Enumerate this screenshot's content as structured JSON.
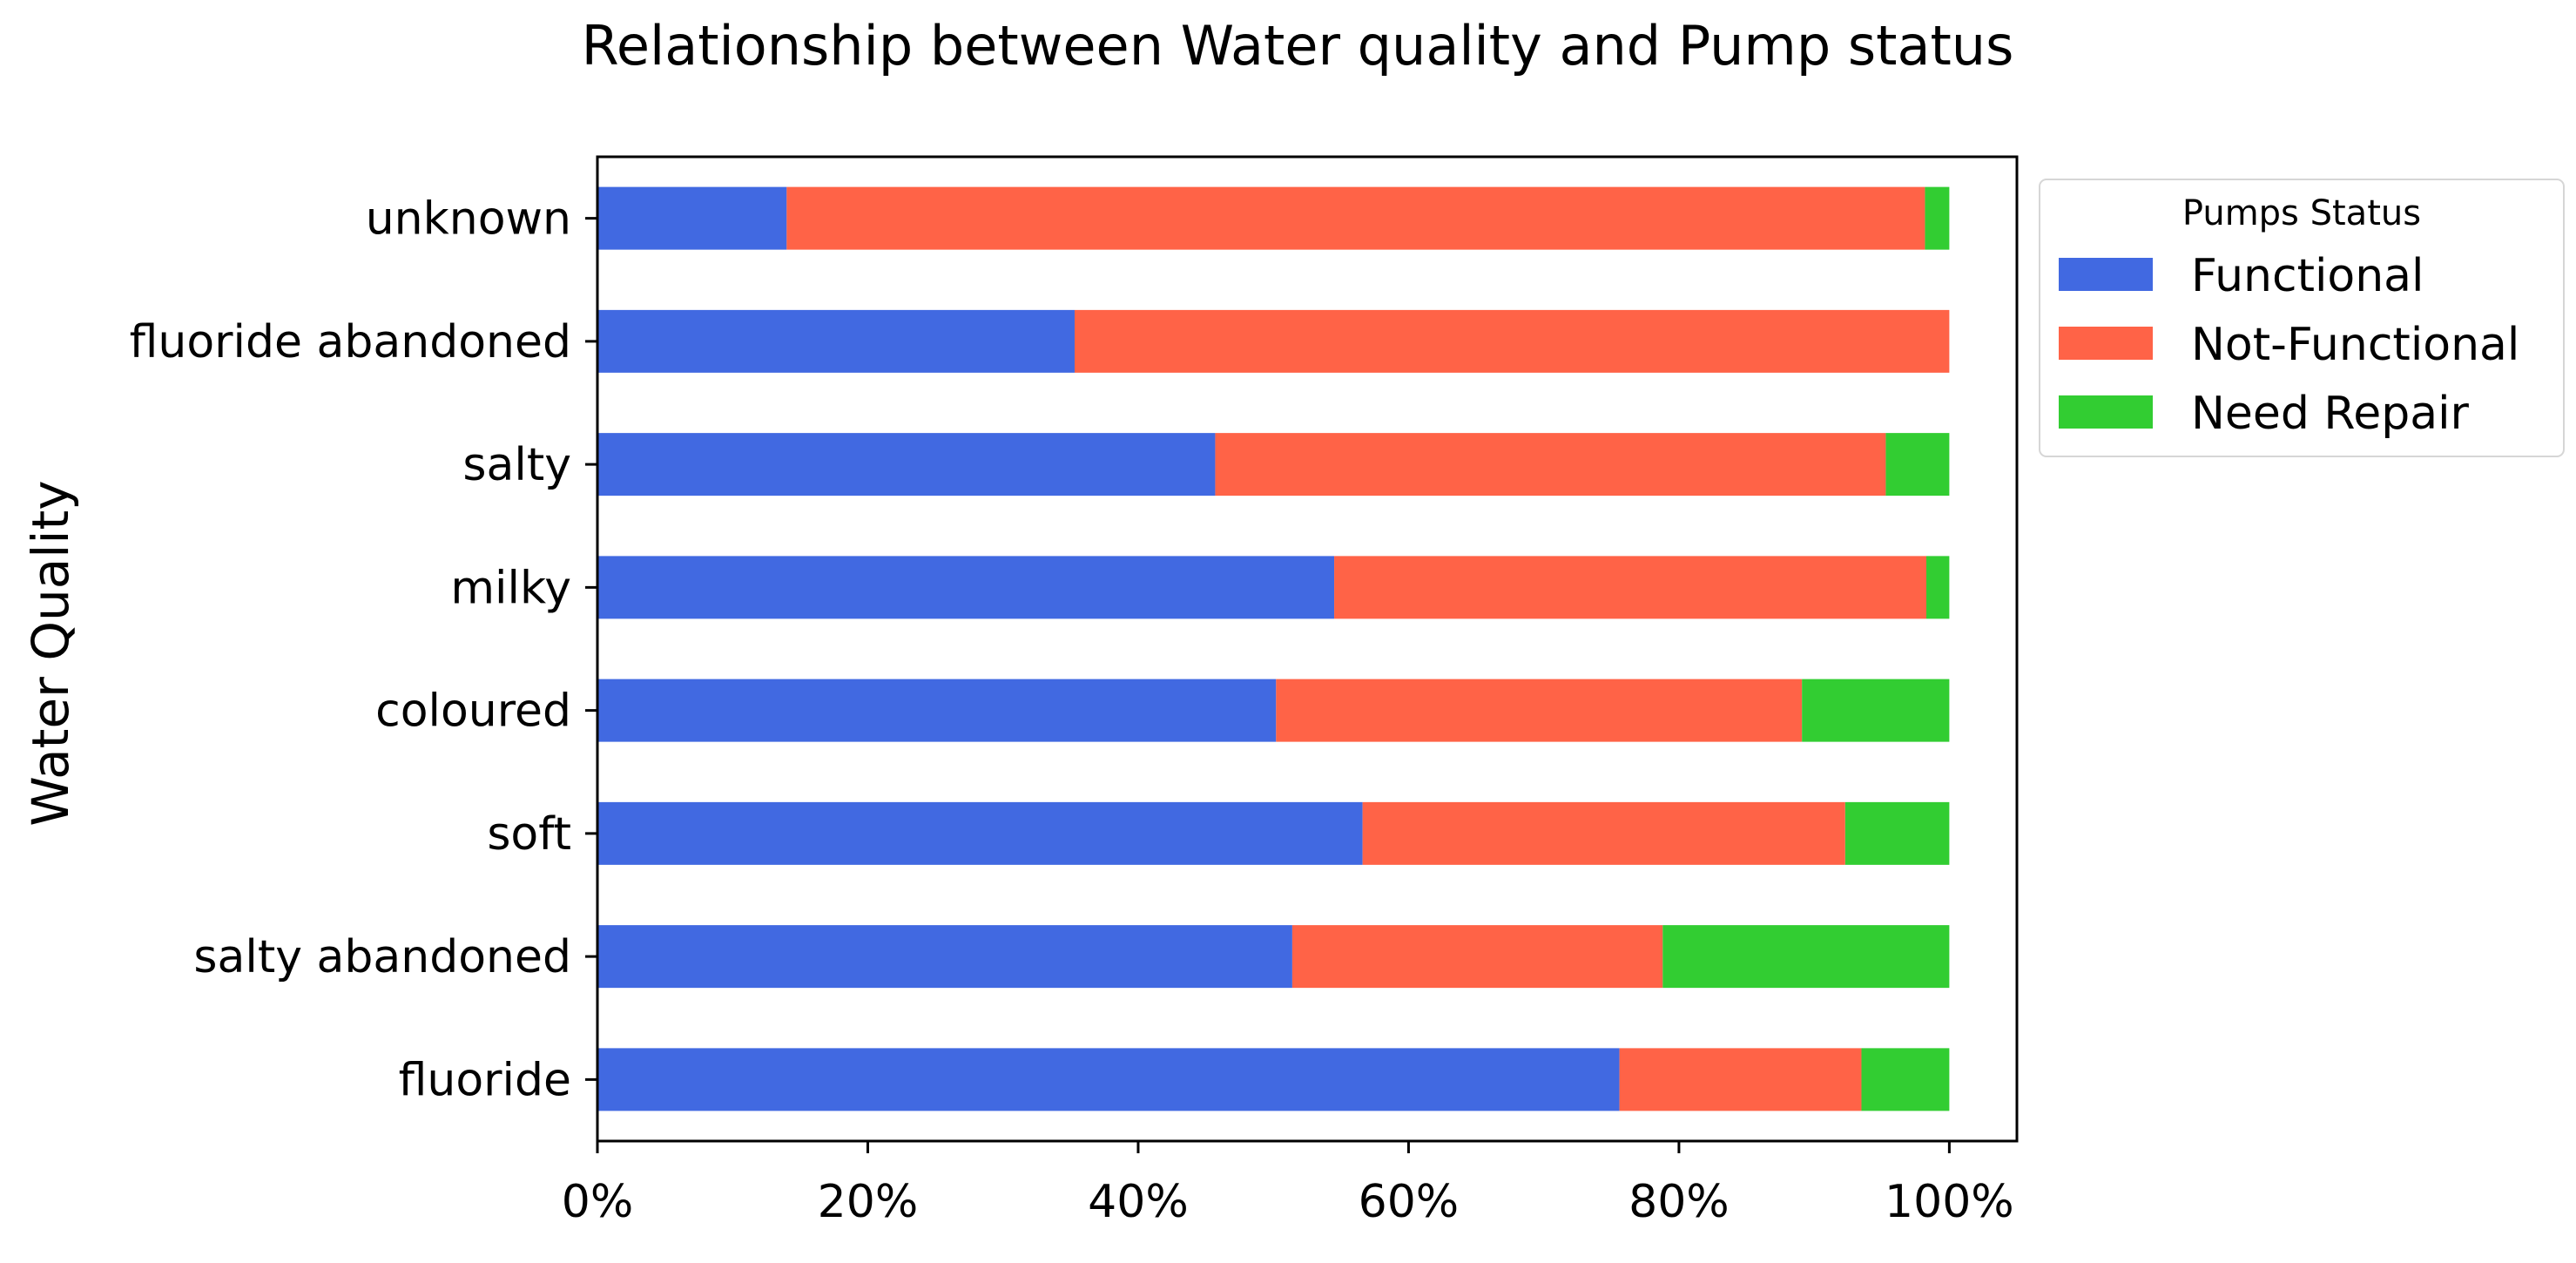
{
  "chart_data": {
    "type": "bar",
    "orientation": "horizontal",
    "stacked": true,
    "title": "Relationship between Water quality and Pump status",
    "xlabel": "",
    "ylabel": "Water Quality",
    "xlim": [
      0,
      105
    ],
    "x_ticks": [
      0,
      20,
      40,
      60,
      80,
      100
    ],
    "x_tick_labels": [
      "0%",
      "20%",
      "40%",
      "60%",
      "80%",
      "100%"
    ],
    "categories": [
      "unknown",
      "fluoride abandoned",
      "salty",
      "milky",
      "coloured",
      "soft",
      "salty abandoned",
      "fluoride"
    ],
    "series": [
      {
        "name": "Functional",
        "color": "#4169E1",
        "values": [
          14.0,
          35.3,
          45.7,
          54.5,
          50.2,
          56.6,
          51.4,
          75.6
        ]
      },
      {
        "name": "Not-Functional",
        "color": "#FF6347",
        "values": [
          84.2,
          64.7,
          49.6,
          43.8,
          38.9,
          35.7,
          27.4,
          17.9
        ]
      },
      {
        "name": "Need Repair",
        "color": "#32CD32",
        "values": [
          1.8,
          0.0,
          4.7,
          1.7,
          10.9,
          7.7,
          21.2,
          6.5
        ]
      }
    ],
    "legend": {
      "title": "Pumps Status",
      "placement": "outside-top-right"
    },
    "grid": false
  }
}
